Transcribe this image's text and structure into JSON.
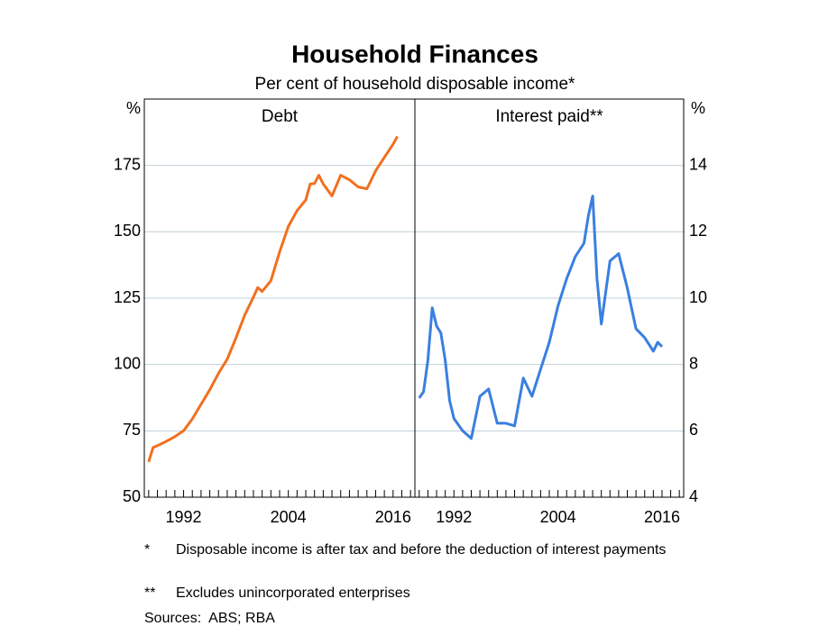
{
  "title": "Household Finances",
  "subtitle": "Per cent of household disposable income*",
  "notes": [
    {
      "mark": "*",
      "text": "Disposable income is after tax and before the deduction of interest payments"
    },
    {
      "mark": "**",
      "text": "Excludes unincorporated enterprises"
    }
  ],
  "sources": "Sources:  ABS; RBA",
  "chart_data": [
    {
      "type": "line",
      "title": "Debt",
      "ylabel": "%",
      "axis_side": "left",
      "color": "#f07020",
      "x": [
        1988,
        1988.5,
        1989,
        1990,
        1991,
        1992,
        1993,
        1994,
        1995,
        1996,
        1997,
        1998,
        1999,
        2000,
        2000.5,
        2001,
        2002,
        2003,
        2004,
        2005,
        2006,
        2006.5,
        2007,
        2007.5,
        2008,
        2009,
        2010,
        2011,
        2012,
        2013,
        2014,
        2015,
        2016,
        2016.5
      ],
      "values": [
        63.3,
        68.7,
        69.4,
        71,
        72.8,
        75,
        79.5,
        85,
        90.5,
        96.7,
        102,
        110,
        118.6,
        125.4,
        129,
        127.5,
        131.5,
        142.4,
        152,
        158,
        162,
        168,
        168.2,
        171.3,
        168,
        163.5,
        171.3,
        169.6,
        166.9,
        166.2,
        173,
        178,
        183,
        185.9
      ],
      "xlim": [
        1987.5,
        2018.5
      ],
      "xticks": [
        1992,
        2004,
        2016
      ],
      "xminorticks": [
        1988,
        1989,
        1990,
        1991,
        1992,
        1993,
        1994,
        1995,
        1996,
        1997,
        1998,
        1999,
        2000,
        2001,
        2002,
        2003,
        2004,
        2005,
        2006,
        2007,
        2008,
        2009,
        2010,
        2011,
        2012,
        2013,
        2014,
        2015,
        2016,
        2017,
        2018
      ],
      "ylim": [
        50,
        200
      ],
      "yticks": [
        50,
        75,
        100,
        125,
        150,
        175
      ],
      "grid": true
    },
    {
      "type": "line",
      "title": "Interest paid**",
      "ylabel": "%",
      "axis_side": "right",
      "color": "#3a7fe0",
      "x": [
        1988,
        1988.5,
        1989,
        1989.5,
        1990,
        1990.5,
        1991,
        1991.5,
        1992,
        1993,
        1994,
        1995,
        1996,
        1997,
        1998,
        1999,
        2000,
        2001,
        2002,
        2003,
        2004,
        2005,
        2006,
        2007,
        2007.5,
        2008,
        2008.5,
        2009,
        2010,
        2011,
        2012,
        2013,
        2014,
        2015,
        2015.5,
        2016
      ],
      "values": [
        6.99,
        7.18,
        8.13,
        9.71,
        9.16,
        8.95,
        8.13,
        6.91,
        6.37,
        6.0,
        5.77,
        7.04,
        7.26,
        6.23,
        6.23,
        6.15,
        7.59,
        7.04,
        7.86,
        8.67,
        9.76,
        10.58,
        11.25,
        11.66,
        12.48,
        13.08,
        10.58,
        9.22,
        11.12,
        11.34,
        10.3,
        9.08,
        8.81,
        8.4,
        8.67,
        8.54
      ],
      "xlim": [
        1987.5,
        2018.5
      ],
      "xticks": [
        1992,
        2004,
        2016
      ],
      "xminorticks": [
        1988,
        1989,
        1990,
        1991,
        1992,
        1993,
        1994,
        1995,
        1996,
        1997,
        1998,
        1999,
        2000,
        2001,
        2002,
        2003,
        2004,
        2005,
        2006,
        2007,
        2008,
        2009,
        2010,
        2011,
        2012,
        2013,
        2014,
        2015,
        2016,
        2017,
        2018
      ],
      "ylim": [
        4,
        16
      ],
      "yticks": [
        4,
        6,
        8,
        10,
        12,
        14
      ],
      "grid": true
    }
  ]
}
